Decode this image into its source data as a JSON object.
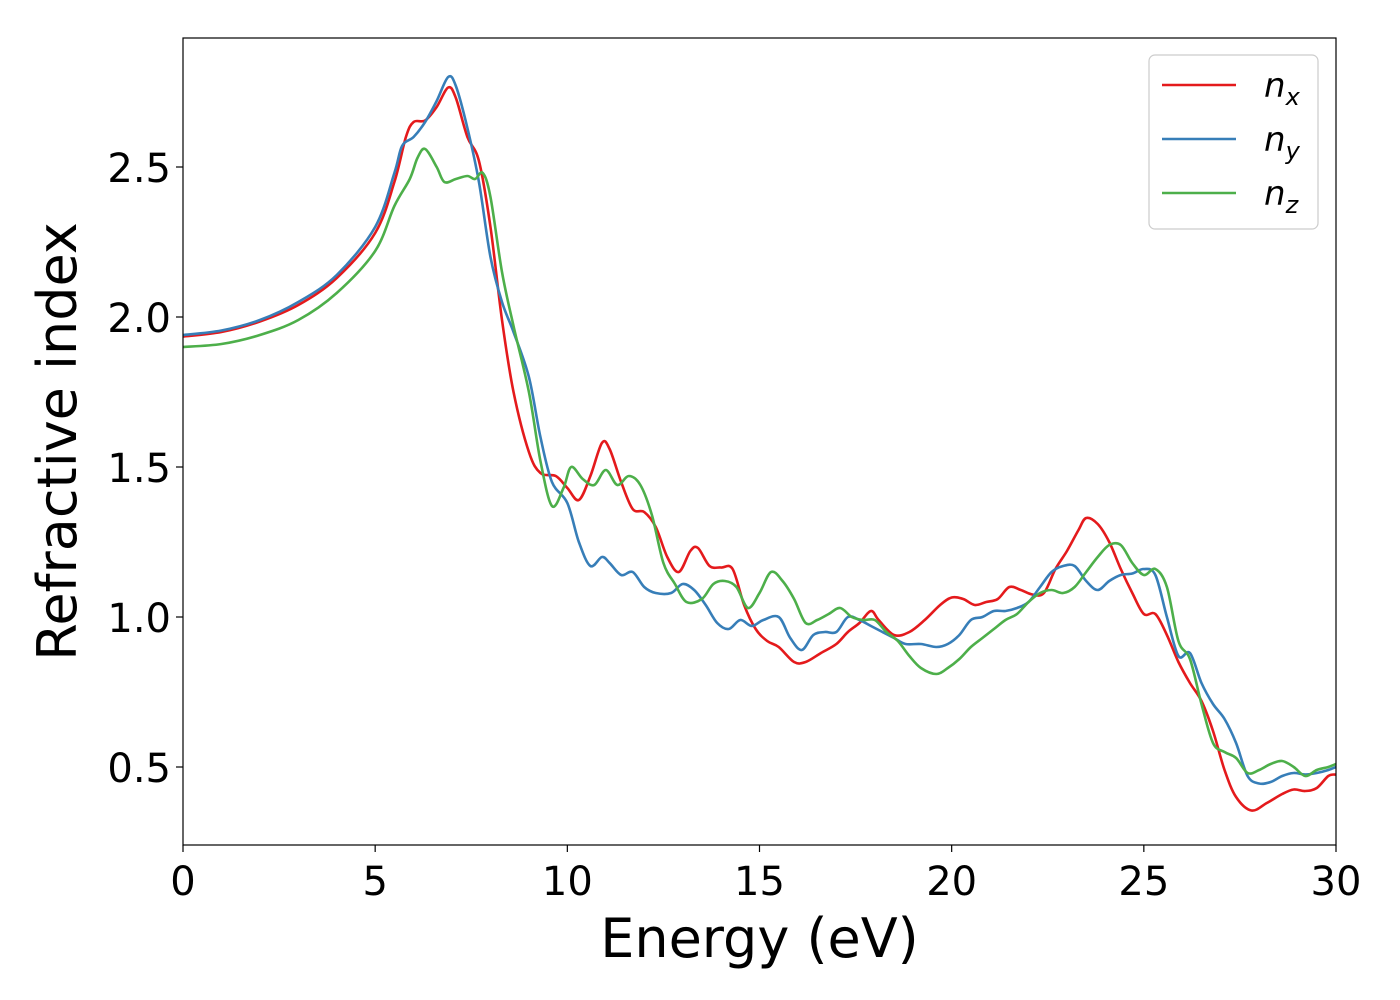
{
  "chart_data": {
    "type": "line",
    "title": "",
    "xlabel": "Energy (eV)",
    "ylabel": "Refractive index",
    "xlim": [
      0,
      30
    ],
    "ylim": [
      0.24,
      2.93
    ],
    "x_ticks": [
      "0",
      "5",
      "10",
      "15",
      "20",
      "25",
      "30"
    ],
    "x_tick_values": [
      0,
      5,
      10,
      15,
      20,
      25,
      30
    ],
    "y_ticks": [
      "0.5",
      "1.0",
      "1.5",
      "2.0",
      "2.5"
    ],
    "y_tick_values": [
      0.5,
      1.0,
      1.5,
      2.0,
      2.5
    ],
    "grid": false,
    "legend_position": "top-right",
    "series": [
      {
        "name": "n_x",
        "label_base": "n",
        "label_sub": "x",
        "color": "#e41a1c",
        "points": [
          [
            0,
            1.935
          ],
          [
            1,
            1.95
          ],
          [
            2,
            1.985
          ],
          [
            3,
            2.04
          ],
          [
            4,
            2.13
          ],
          [
            5,
            2.28
          ],
          [
            5.5,
            2.45
          ],
          [
            5.8,
            2.6
          ],
          [
            6.0,
            2.65
          ],
          [
            6.3,
            2.655
          ],
          [
            6.6,
            2.7
          ],
          [
            6.9,
            2.765
          ],
          [
            7.1,
            2.73
          ],
          [
            7.4,
            2.6
          ],
          [
            7.7,
            2.52
          ],
          [
            8.0,
            2.3
          ],
          [
            8.3,
            1.99
          ],
          [
            8.6,
            1.75
          ],
          [
            9.0,
            1.55
          ],
          [
            9.3,
            1.48
          ],
          [
            9.7,
            1.47
          ],
          [
            10.0,
            1.43
          ],
          [
            10.3,
            1.39
          ],
          [
            10.6,
            1.47
          ],
          [
            10.9,
            1.58
          ],
          [
            11.1,
            1.56
          ],
          [
            11.4,
            1.45
          ],
          [
            11.7,
            1.36
          ],
          [
            12.0,
            1.35
          ],
          [
            12.3,
            1.3
          ],
          [
            12.6,
            1.2
          ],
          [
            12.9,
            1.15
          ],
          [
            13.2,
            1.22
          ],
          [
            13.4,
            1.23
          ],
          [
            13.7,
            1.17
          ],
          [
            14.0,
            1.165
          ],
          [
            14.3,
            1.16
          ],
          [
            14.6,
            1.04
          ],
          [
            14.9,
            0.96
          ],
          [
            15.2,
            0.92
          ],
          [
            15.5,
            0.9
          ],
          [
            15.9,
            0.85
          ],
          [
            16.2,
            0.85
          ],
          [
            16.6,
            0.88
          ],
          [
            17.0,
            0.91
          ],
          [
            17.3,
            0.95
          ],
          [
            17.6,
            0.98
          ],
          [
            17.9,
            1.02
          ],
          [
            18.1,
            0.99
          ],
          [
            18.5,
            0.94
          ],
          [
            18.9,
            0.95
          ],
          [
            19.3,
            0.99
          ],
          [
            19.7,
            1.04
          ],
          [
            20.0,
            1.065
          ],
          [
            20.3,
            1.06
          ],
          [
            20.6,
            1.04
          ],
          [
            20.9,
            1.05
          ],
          [
            21.2,
            1.06
          ],
          [
            21.5,
            1.1
          ],
          [
            21.8,
            1.09
          ],
          [
            22.1,
            1.075
          ],
          [
            22.4,
            1.08
          ],
          [
            22.7,
            1.16
          ],
          [
            23.0,
            1.22
          ],
          [
            23.3,
            1.29
          ],
          [
            23.5,
            1.33
          ],
          [
            23.8,
            1.31
          ],
          [
            24.1,
            1.25
          ],
          [
            24.4,
            1.16
          ],
          [
            24.7,
            1.08
          ],
          [
            25.0,
            1.01
          ],
          [
            25.3,
            1.01
          ],
          [
            25.6,
            0.94
          ],
          [
            25.9,
            0.85
          ],
          [
            26.2,
            0.78
          ],
          [
            26.5,
            0.72
          ],
          [
            26.8,
            0.62
          ],
          [
            27.1,
            0.49
          ],
          [
            27.4,
            0.4
          ],
          [
            27.8,
            0.355
          ],
          [
            28.2,
            0.38
          ],
          [
            28.6,
            0.41
          ],
          [
            28.9,
            0.425
          ],
          [
            29.2,
            0.42
          ],
          [
            29.5,
            0.43
          ],
          [
            29.8,
            0.47
          ],
          [
            30,
            0.475
          ]
        ]
      },
      {
        "name": "n_y",
        "label_base": "n",
        "label_sub": "y",
        "color": "#377eb8",
        "points": [
          [
            0,
            1.94
          ],
          [
            1,
            1.955
          ],
          [
            2,
            1.99
          ],
          [
            3,
            2.05
          ],
          [
            4,
            2.14
          ],
          [
            5,
            2.3
          ],
          [
            5.5,
            2.48
          ],
          [
            5.7,
            2.57
          ],
          [
            6.0,
            2.6
          ],
          [
            6.3,
            2.65
          ],
          [
            6.6,
            2.72
          ],
          [
            6.9,
            2.8
          ],
          [
            7.1,
            2.77
          ],
          [
            7.4,
            2.63
          ],
          [
            7.7,
            2.45
          ],
          [
            8.0,
            2.2
          ],
          [
            8.3,
            2.05
          ],
          [
            8.6,
            1.95
          ],
          [
            9.0,
            1.8
          ],
          [
            9.3,
            1.6
          ],
          [
            9.6,
            1.45
          ],
          [
            10.0,
            1.38
          ],
          [
            10.3,
            1.25
          ],
          [
            10.6,
            1.17
          ],
          [
            10.9,
            1.2
          ],
          [
            11.1,
            1.18
          ],
          [
            11.4,
            1.14
          ],
          [
            11.7,
            1.15
          ],
          [
            12.0,
            1.1
          ],
          [
            12.3,
            1.08
          ],
          [
            12.7,
            1.08
          ],
          [
            13.0,
            1.11
          ],
          [
            13.3,
            1.09
          ],
          [
            13.6,
            1.04
          ],
          [
            13.9,
            0.98
          ],
          [
            14.2,
            0.96
          ],
          [
            14.5,
            0.99
          ],
          [
            14.8,
            0.97
          ],
          [
            15.1,
            0.99
          ],
          [
            15.5,
            1.0
          ],
          [
            15.8,
            0.93
          ],
          [
            16.1,
            0.89
          ],
          [
            16.4,
            0.94
          ],
          [
            16.7,
            0.95
          ],
          [
            17.0,
            0.95
          ],
          [
            17.3,
            1.0
          ],
          [
            17.6,
            0.99
          ],
          [
            17.9,
            0.97
          ],
          [
            18.2,
            0.95
          ],
          [
            18.5,
            0.93
          ],
          [
            18.8,
            0.91
          ],
          [
            19.2,
            0.91
          ],
          [
            19.6,
            0.9
          ],
          [
            19.9,
            0.91
          ],
          [
            20.2,
            0.94
          ],
          [
            20.5,
            0.99
          ],
          [
            20.8,
            1.0
          ],
          [
            21.1,
            1.02
          ],
          [
            21.4,
            1.02
          ],
          [
            21.7,
            1.03
          ],
          [
            22.0,
            1.05
          ],
          [
            22.3,
            1.1
          ],
          [
            22.6,
            1.15
          ],
          [
            22.9,
            1.17
          ],
          [
            23.2,
            1.17
          ],
          [
            23.5,
            1.12
          ],
          [
            23.8,
            1.09
          ],
          [
            24.1,
            1.12
          ],
          [
            24.4,
            1.14
          ],
          [
            24.7,
            1.145
          ],
          [
            25.0,
            1.16
          ],
          [
            25.3,
            1.14
          ],
          [
            25.6,
            1.0
          ],
          [
            25.9,
            0.87
          ],
          [
            26.2,
            0.88
          ],
          [
            26.5,
            0.78
          ],
          [
            26.8,
            0.71
          ],
          [
            27.1,
            0.66
          ],
          [
            27.4,
            0.58
          ],
          [
            27.7,
            0.47
          ],
          [
            28.0,
            0.445
          ],
          [
            28.3,
            0.45
          ],
          [
            28.6,
            0.47
          ],
          [
            28.9,
            0.48
          ],
          [
            29.2,
            0.475
          ],
          [
            29.5,
            0.48
          ],
          [
            29.8,
            0.49
          ],
          [
            30,
            0.5
          ]
        ]
      },
      {
        "name": "n_z",
        "label_base": "n",
        "label_sub": "z",
        "color": "#4daf4a",
        "points": [
          [
            0,
            1.9
          ],
          [
            1,
            1.91
          ],
          [
            2,
            1.94
          ],
          [
            3,
            1.99
          ],
          [
            4,
            2.08
          ],
          [
            5,
            2.22
          ],
          [
            5.5,
            2.37
          ],
          [
            5.9,
            2.46
          ],
          [
            6.1,
            2.53
          ],
          [
            6.3,
            2.56
          ],
          [
            6.6,
            2.5
          ],
          [
            6.8,
            2.45
          ],
          [
            7.1,
            2.46
          ],
          [
            7.4,
            2.47
          ],
          [
            7.6,
            2.46
          ],
          [
            7.8,
            2.48
          ],
          [
            8.0,
            2.4
          ],
          [
            8.3,
            2.15
          ],
          [
            8.6,
            1.97
          ],
          [
            9.0,
            1.75
          ],
          [
            9.3,
            1.52
          ],
          [
            9.6,
            1.37
          ],
          [
            9.9,
            1.43
          ],
          [
            10.1,
            1.5
          ],
          [
            10.4,
            1.46
          ],
          [
            10.7,
            1.44
          ],
          [
            11.0,
            1.49
          ],
          [
            11.3,
            1.44
          ],
          [
            11.6,
            1.47
          ],
          [
            11.9,
            1.44
          ],
          [
            12.2,
            1.34
          ],
          [
            12.5,
            1.18
          ],
          [
            12.8,
            1.11
          ],
          [
            13.1,
            1.05
          ],
          [
            13.5,
            1.06
          ],
          [
            13.8,
            1.11
          ],
          [
            14.1,
            1.12
          ],
          [
            14.4,
            1.1
          ],
          [
            14.7,
            1.03
          ],
          [
            15.0,
            1.08
          ],
          [
            15.3,
            1.15
          ],
          [
            15.6,
            1.12
          ],
          [
            15.9,
            1.06
          ],
          [
            16.2,
            0.98
          ],
          [
            16.5,
            0.99
          ],
          [
            16.8,
            1.01
          ],
          [
            17.1,
            1.03
          ],
          [
            17.4,
            1.0
          ],
          [
            17.7,
            0.99
          ],
          [
            18.0,
            0.99
          ],
          [
            18.3,
            0.95
          ],
          [
            18.6,
            0.92
          ],
          [
            18.9,
            0.87
          ],
          [
            19.2,
            0.83
          ],
          [
            19.6,
            0.81
          ],
          [
            19.9,
            0.83
          ],
          [
            20.2,
            0.86
          ],
          [
            20.5,
            0.9
          ],
          [
            20.8,
            0.93
          ],
          [
            21.1,
            0.96
          ],
          [
            21.4,
            0.99
          ],
          [
            21.7,
            1.01
          ],
          [
            22.0,
            1.05
          ],
          [
            22.3,
            1.08
          ],
          [
            22.6,
            1.09
          ],
          [
            22.9,
            1.08
          ],
          [
            23.2,
            1.1
          ],
          [
            23.5,
            1.15
          ],
          [
            23.8,
            1.2
          ],
          [
            24.1,
            1.24
          ],
          [
            24.4,
            1.24
          ],
          [
            24.7,
            1.18
          ],
          [
            25.0,
            1.14
          ],
          [
            25.3,
            1.16
          ],
          [
            25.6,
            1.1
          ],
          [
            25.9,
            0.92
          ],
          [
            26.2,
            0.86
          ],
          [
            26.5,
            0.71
          ],
          [
            26.8,
            0.58
          ],
          [
            27.1,
            0.55
          ],
          [
            27.4,
            0.53
          ],
          [
            27.7,
            0.48
          ],
          [
            28.0,
            0.49
          ],
          [
            28.3,
            0.51
          ],
          [
            28.6,
            0.52
          ],
          [
            28.9,
            0.5
          ],
          [
            29.2,
            0.47
          ],
          [
            29.5,
            0.49
          ],
          [
            29.8,
            0.5
          ],
          [
            30,
            0.51
          ]
        ]
      }
    ]
  }
}
